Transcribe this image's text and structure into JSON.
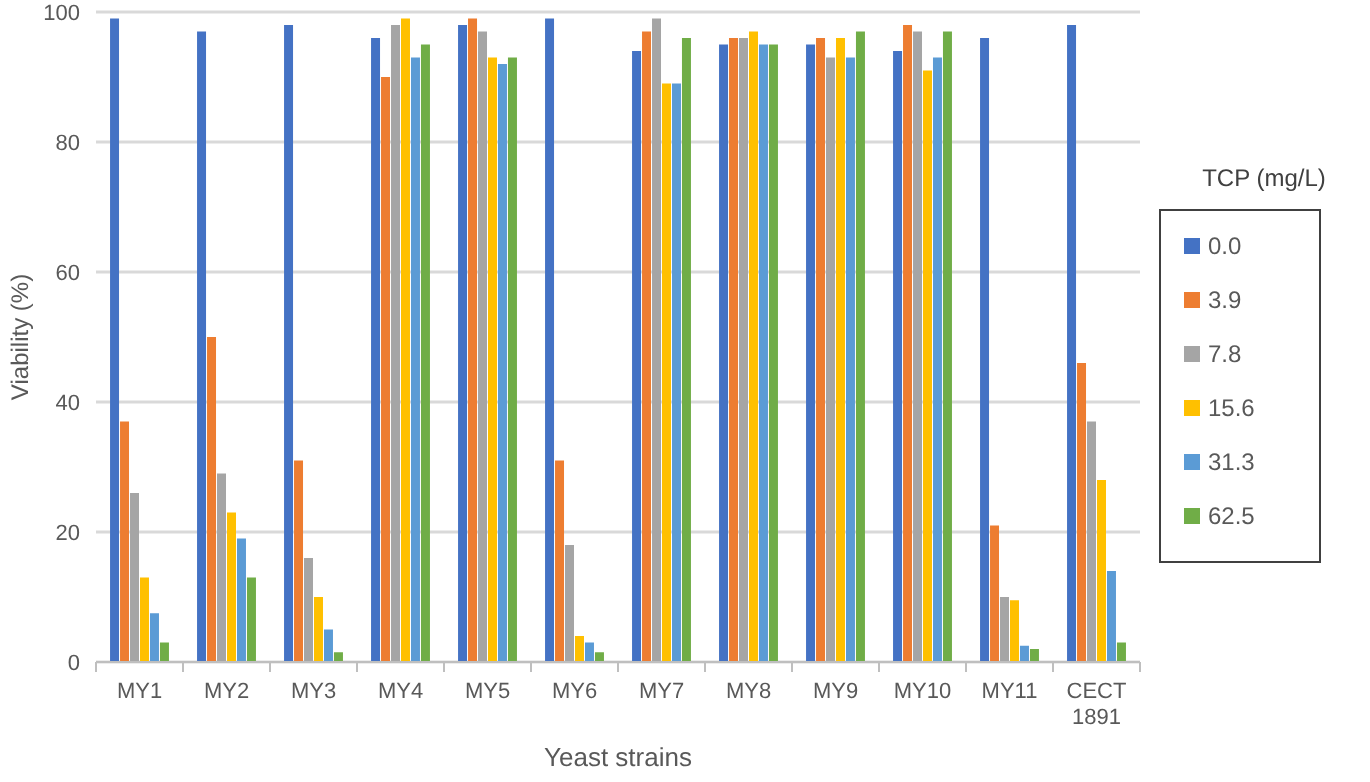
{
  "chart_data": {
    "type": "bar",
    "xlabel": "Yeast strains",
    "ylabel": "Viability (%)",
    "legend_title": "TCP (mg/L)",
    "categories": [
      "MY1",
      "MY2",
      "MY3",
      "MY4",
      "MY5",
      "MY6",
      "MY7",
      "MY8",
      "MY9",
      "MY10",
      "MY11",
      "CECT 1891"
    ],
    "series": [
      {
        "name": "0.0",
        "color": "#4472c4",
        "values": [
          99,
          97,
          98,
          96,
          98,
          99,
          94,
          95,
          95,
          94,
          96,
          98
        ]
      },
      {
        "name": "3.9",
        "color": "#ed7d31",
        "values": [
          37,
          50,
          31,
          90,
          99,
          31,
          97,
          96,
          96,
          98,
          21,
          46
        ]
      },
      {
        "name": "7.8",
        "color": "#a5a5a5",
        "values": [
          26,
          29,
          16,
          98,
          97,
          18,
          99,
          96,
          93,
          97,
          10,
          37
        ]
      },
      {
        "name": "15.6",
        "color": "#ffc000",
        "values": [
          13,
          23,
          10,
          99,
          93,
          4,
          89,
          97,
          96,
          91,
          9.5,
          28
        ]
      },
      {
        "name": "31.3",
        "color": "#5b9bd5",
        "values": [
          7.5,
          19,
          5,
          93,
          92,
          3,
          89,
          95,
          93,
          93,
          2.5,
          14
        ]
      },
      {
        "name": "62.5",
        "color": "#70ad47",
        "values": [
          3,
          13,
          1.5,
          95,
          93,
          1.5,
          96,
          95,
          97,
          97,
          2,
          3
        ]
      }
    ],
    "ylim": [
      0,
      100
    ],
    "yticks": [
      0,
      20,
      40,
      60,
      80,
      100
    ],
    "grid": "y",
    "legend": "right"
  }
}
